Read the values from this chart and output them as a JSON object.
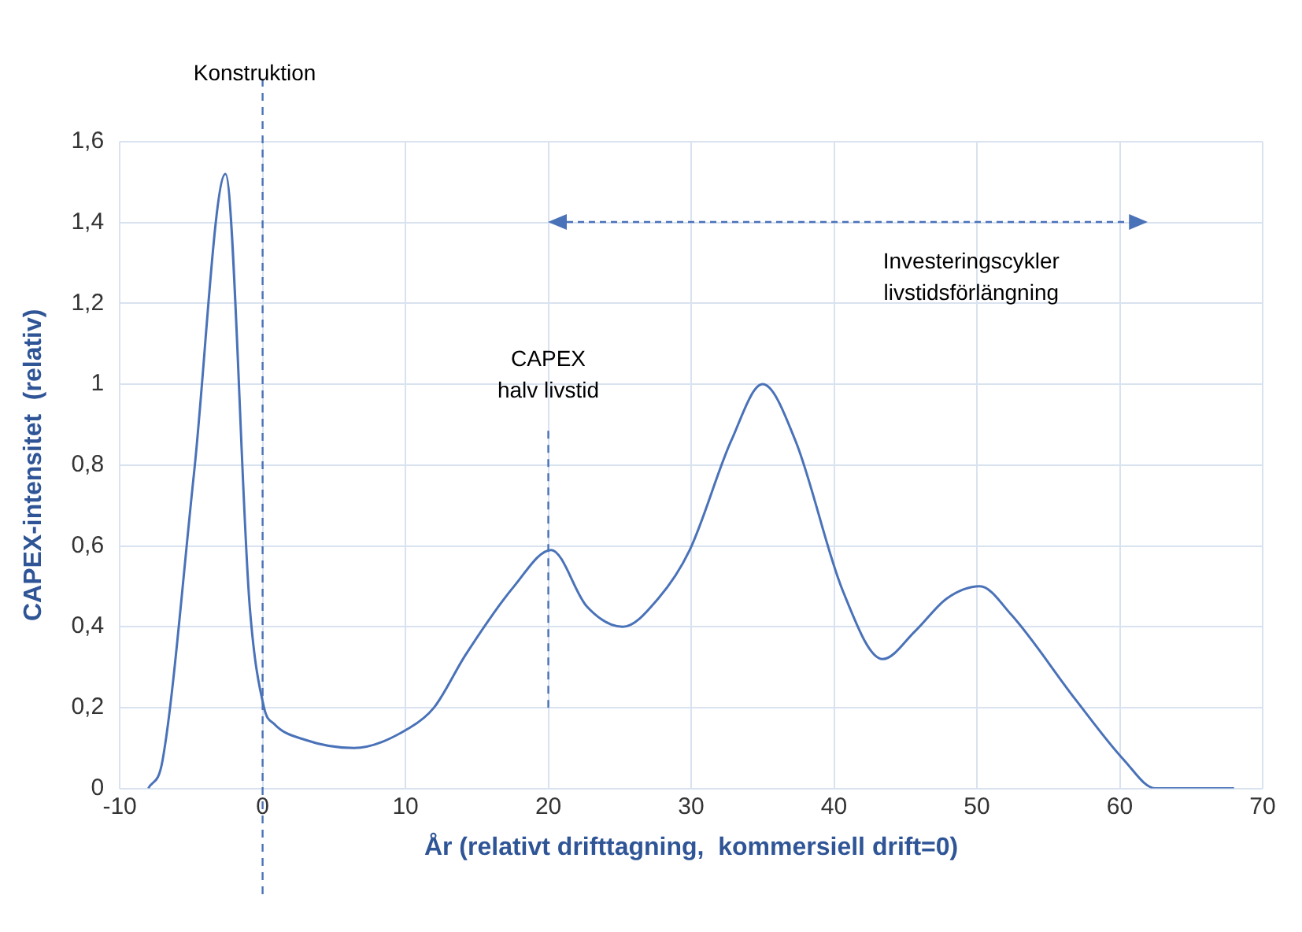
{
  "chart_data": {
    "type": "line",
    "xlabel": "År (relativt drifttagning,  kommersiell drift=0)",
    "ylabel": "CAPEX-intensitet  (relativ)",
    "x": [
      -8,
      -7,
      -4.8,
      -2.6,
      -0.9,
      0.1,
      0.8,
      3,
      6.4,
      10.3,
      12,
      14.2,
      17.6,
      20.2,
      22.7,
      25.2,
      27.7,
      29.9,
      32.8,
      35,
      37.3,
      40.6,
      43.4,
      45.7,
      47.9,
      50.2,
      52.4,
      56.9,
      60.3,
      62.5,
      68
    ],
    "series": [
      {
        "color": "#4a72b8",
        "values": [
          0,
          0.07,
          0.78,
          1.52,
          0.45,
          0.2,
          0.16,
          0.12,
          0.1,
          0.15,
          0.2,
          0.33,
          0.5,
          0.59,
          0.45,
          0.4,
          0.47,
          0.59,
          0.86,
          1.0,
          0.86,
          0.49,
          0.32,
          0.39,
          0.47,
          0.5,
          0.43,
          0.22,
          0.07,
          0,
          0
        ]
      }
    ],
    "xlim": [
      -10,
      70
    ],
    "xticks": [
      -10,
      0,
      10,
      20,
      30,
      40,
      50,
      60,
      70
    ],
    "ylim": [
      0,
      1.6
    ],
    "yticks": [
      0,
      {
        "value": 0.2,
        "label": "0,2"
      },
      {
        "value": 0.4,
        "label": "0,4"
      },
      {
        "value": 0.6,
        "label": "0,6"
      },
      {
        "value": 0.8,
        "label": "0,8"
      },
      1,
      {
        "value": 1.2,
        "label": "1,2"
      },
      {
        "value": 1.4,
        "label": "1,4"
      },
      {
        "value": 1.6,
        "label": "1,6"
      }
    ],
    "grid": true,
    "legend": false,
    "marker": "none",
    "line_style": "solid",
    "ref_lines": [
      {
        "axis": "x",
        "value": 0,
        "label": "Konstruktion",
        "line_style": "dashed",
        "color": "#4a72b8"
      },
      {
        "axis": "x",
        "value": 20,
        "label": "CAPEX\nhalv livstid",
        "line_style": "dashed",
        "color": "#4a72b8"
      }
    ],
    "annotations": [
      "Investeringscykler\nlivstidsförlängning"
    ]
  }
}
